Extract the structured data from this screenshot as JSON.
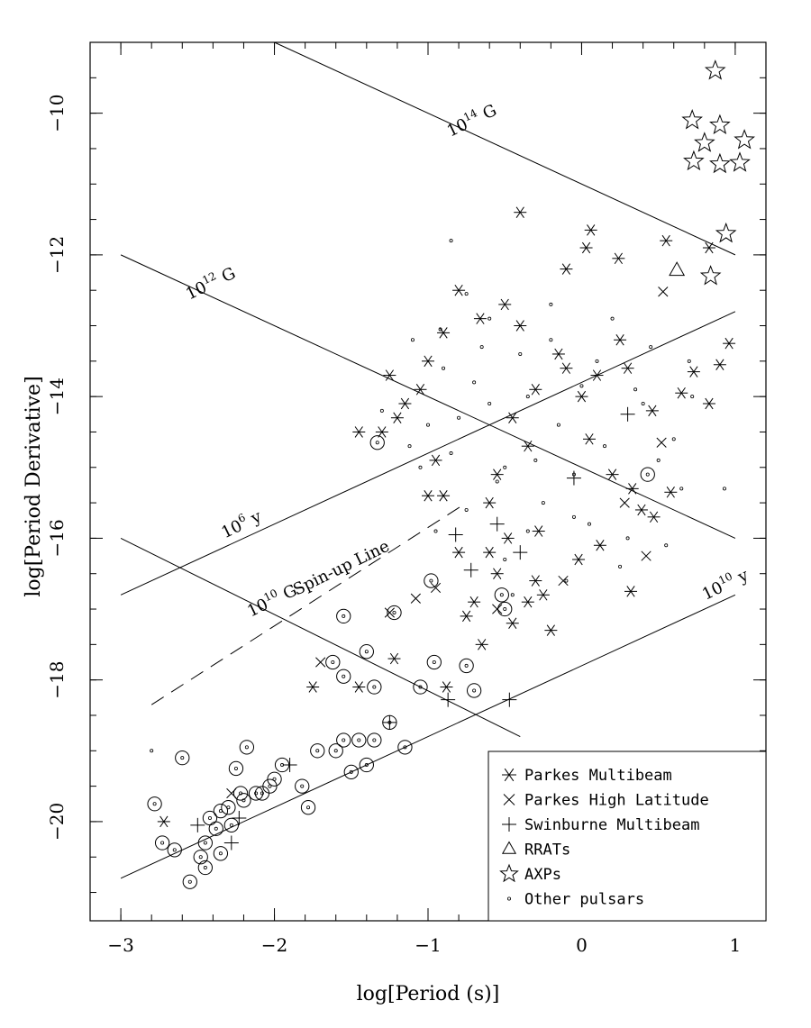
{
  "chart_data": {
    "type": "scatter",
    "xlabel": "log[Period (s)]",
    "ylabel": "log[Period Derivative]",
    "xlim": [
      -3.2,
      1.2
    ],
    "ylim": [
      -21.4,
      -9.0
    ],
    "x_ticks": [
      -3,
      -2,
      -1,
      0,
      1
    ],
    "y_ticks": [
      -20,
      -18,
      -16,
      -14,
      -12,
      -10
    ],
    "x_tick_labels": [
      "−3",
      "−2",
      "−1",
      "0",
      "1"
    ],
    "y_tick_labels": [
      "−20",
      "−18",
      "−16",
      "−14",
      "−12",
      "−10"
    ],
    "grid": false,
    "legend_position": "bottom-right",
    "legend": [
      {
        "marker": "asterisk",
        "label": "Parkes Multibeam"
      },
      {
        "marker": "cross",
        "label": "Parkes High Latitude"
      },
      {
        "marker": "plus",
        "label": "Swinburne Multibeam"
      },
      {
        "marker": "triangle",
        "label": "RRATs"
      },
      {
        "marker": "star",
        "label": "AXPs"
      },
      {
        "marker": "dot",
        "label": "Other pulsars"
      }
    ],
    "reference_lines": [
      {
        "label_base": "10",
        "label_exp": "14",
        "label_unit": "G",
        "kind": "field",
        "x": [
          -2.0,
          1.0
        ],
        "y": [
          -9.0,
          -12.0
        ],
        "label_x": -0.7,
        "label_rot": -26
      },
      {
        "label_base": "10",
        "label_exp": "12",
        "label_unit": "G",
        "kind": "field",
        "x": [
          -3.0,
          1.0
        ],
        "y": [
          -12.0,
          -16.0
        ],
        "label_x": -2.4,
        "label_rot": -26
      },
      {
        "label_base": "10",
        "label_exp": "10",
        "label_unit": "G",
        "kind": "field",
        "x": [
          -3.0,
          -0.4
        ],
        "y": [
          -16.0,
          -18.8
        ],
        "label_x": -2.0,
        "label_rot": -26
      },
      {
        "label_base": "10",
        "label_exp": "6",
        "label_unit": "y",
        "kind": "age",
        "x": [
          -3.0,
          1.0
        ],
        "y": [
          -16.8,
          -12.8
        ],
        "label_x": -2.2,
        "label_rot": -26
      },
      {
        "label_base": "10",
        "label_exp": "10",
        "label_unit": "y",
        "kind": "age",
        "x": [
          -3.0,
          1.0
        ],
        "y": [
          -20.8,
          -16.8
        ],
        "label_x": 0.95,
        "label_rot": -26
      },
      {
        "label": "Spin-up Line",
        "kind": "spinup",
        "dashed": true,
        "x": [
          -2.8,
          -0.75
        ],
        "y": [
          -18.35,
          -15.5
        ],
        "label_x": -1.55,
        "label_rot": -26
      }
    ],
    "series": [
      {
        "name": "AXPs",
        "marker": "star",
        "x": [
          0.87,
          0.72,
          0.9,
          0.8,
          1.06,
          0.73,
          0.9,
          1.03,
          0.94,
          0.84
        ],
        "y": [
          -9.4,
          -10.1,
          -10.17,
          -10.42,
          -10.38,
          -10.68,
          -10.72,
          -10.7,
          -11.7,
          -12.3
        ]
      },
      {
        "name": "RRATs",
        "marker": "triangle",
        "x": [
          0.62
        ],
        "y": [
          -12.22
        ]
      },
      {
        "name": "Parkes High Latitude",
        "marker": "cross",
        "x": [
          0.53,
          0.52,
          0.42,
          -0.12,
          0.28,
          -0.55,
          -0.95,
          -1.08,
          -1.25,
          -1.7,
          -2.28
        ],
        "y": [
          -12.52,
          -14.65,
          -16.25,
          -16.6,
          -15.5,
          -17.0,
          -16.7,
          -16.85,
          -17.05,
          -17.75,
          -19.6
        ]
      },
      {
        "name": "Swinburne Multibeam",
        "marker": "plus",
        "x": [
          -0.47,
          -0.87,
          -0.82,
          -0.72,
          -0.55,
          -0.4,
          -0.05,
          0.3,
          -1.25,
          -2.23,
          -2.28,
          -2.5,
          -1.9
        ],
        "y": [
          -18.28,
          -18.28,
          -15.95,
          -16.45,
          -15.8,
          -16.2,
          -15.15,
          -14.25,
          -18.6,
          -19.95,
          -20.3,
          -20.05,
          -19.2
        ]
      },
      {
        "name": "Parkes Multibeam",
        "marker": "asterisk",
        "x": [
          -0.4,
          0.06,
          0.03,
          0.24,
          -0.1,
          0.55,
          0.83,
          0.96,
          0.9,
          0.73,
          0.65,
          0.83,
          0.46,
          0.3,
          -0.15,
          -0.4,
          -0.66,
          -0.5,
          -0.8,
          -0.9,
          -1.0,
          -1.05,
          -1.15,
          -1.2,
          -1.25,
          -1.3,
          -1.45,
          -0.55,
          -0.6,
          -0.48,
          0.05,
          0.2,
          0.33,
          0.39,
          0.47,
          0.12,
          -0.02,
          -0.3,
          -0.35,
          -0.45,
          -0.7,
          -0.8,
          -0.9,
          -0.95,
          -1.0,
          -0.75,
          -0.65,
          -0.25,
          -0.2,
          -0.55,
          -0.6,
          -0.35,
          0.0,
          0.1,
          0.25,
          -0.1,
          -0.3,
          -0.45,
          -0.28,
          -1.75,
          -1.45,
          -2.72,
          -1.22,
          -0.88,
          0.58,
          0.32
        ],
        "y": [
          -11.4,
          -11.65,
          -11.9,
          -12.05,
          -12.2,
          -11.8,
          -11.9,
          -13.25,
          -13.55,
          -13.65,
          -13.95,
          -14.1,
          -14.2,
          -13.6,
          -13.4,
          -13.0,
          -12.9,
          -12.7,
          -12.5,
          -13.1,
          -13.5,
          -13.9,
          -14.1,
          -14.3,
          -13.7,
          -14.5,
          -14.5,
          -15.1,
          -15.5,
          -16.0,
          -14.6,
          -15.1,
          -15.3,
          -15.6,
          -15.7,
          -16.1,
          -16.3,
          -16.6,
          -16.9,
          -17.2,
          -16.9,
          -16.2,
          -15.4,
          -14.9,
          -15.4,
          -17.1,
          -17.5,
          -16.8,
          -17.3,
          -16.5,
          -16.2,
          -14.7,
          -14.0,
          -13.7,
          -13.2,
          -13.6,
          -13.9,
          -14.3,
          -15.9,
          -18.1,
          -18.1,
          -20.0,
          -17.7,
          -18.1,
          -15.35,
          -16.75
        ]
      },
      {
        "name": "Other pulsars",
        "marker": "dot",
        "x": [
          -0.85,
          -0.75,
          -1.3,
          -0.92,
          -0.6,
          -0.2,
          0.2,
          0.45,
          0.7,
          0.72,
          0.93,
          -0.05,
          -0.35,
          -0.5,
          -1.05,
          -1.12,
          -0.85,
          -0.55,
          -0.25,
          0.05,
          0.3,
          0.55,
          0.65,
          -0.15,
          -0.7,
          -0.9,
          -0.4,
          0.1,
          0.35,
          -0.6,
          -1.0,
          -0.3,
          0.15,
          0.5,
          -0.75,
          -0.45,
          -0.1,
          0.25,
          -0.2,
          -0.65,
          -1.1,
          -0.95,
          -0.5,
          -0.05,
          0.4,
          0.6,
          -0.8,
          -0.35,
          0.0,
          -2.8
        ],
        "y": [
          -11.8,
          -12.55,
          -14.2,
          -13.05,
          -12.9,
          -12.7,
          -12.9,
          -13.3,
          -13.5,
          -14.0,
          -15.3,
          -15.7,
          -15.9,
          -16.3,
          -15.0,
          -14.7,
          -14.8,
          -15.2,
          -15.5,
          -15.8,
          -16.0,
          -16.1,
          -15.3,
          -14.4,
          -13.8,
          -13.6,
          -13.4,
          -13.5,
          -13.9,
          -14.1,
          -14.4,
          -14.9,
          -14.7,
          -14.9,
          -15.6,
          -16.8,
          -16.6,
          -16.4,
          -13.2,
          -13.3,
          -13.2,
          -15.9,
          -15.0,
          -15.1,
          -14.1,
          -14.6,
          -14.3,
          -14.0,
          -13.85,
          -19.0
        ]
      },
      {
        "name": "Other pulsars (binary)",
        "marker": "dot-ring",
        "x": [
          -1.33,
          -1.55,
          -1.22,
          -0.98,
          -1.4,
          -1.62,
          -1.55,
          -1.35,
          -1.05,
          -0.96,
          -0.75,
          -0.7,
          -2.6,
          -2.78,
          -2.73,
          -2.65,
          -2.55,
          -2.48,
          -2.45,
          -2.42,
          -2.38,
          -2.35,
          -2.3,
          -2.25,
          -2.22,
          -2.2,
          -2.18,
          -2.12,
          -2.08,
          -2.03,
          -2.0,
          -1.95,
          -1.82,
          -1.78,
          -1.72,
          -1.6,
          -1.55,
          -1.5,
          -1.45,
          -1.4,
          -1.35,
          -1.25,
          -1.15,
          -2.35,
          -2.28,
          -2.45,
          -0.52,
          0.43,
          -0.5
        ],
        "y": [
          -14.65,
          -17.1,
          -17.05,
          -16.6,
          -17.6,
          -17.75,
          -17.95,
          -18.1,
          -18.1,
          -17.75,
          -17.8,
          -18.15,
          -19.1,
          -19.75,
          -20.3,
          -20.4,
          -20.85,
          -20.5,
          -20.3,
          -19.95,
          -20.1,
          -19.85,
          -19.8,
          -19.25,
          -19.6,
          -19.7,
          -18.95,
          -19.6,
          -19.6,
          -19.5,
          -19.4,
          -19.2,
          -19.5,
          -19.8,
          -19.0,
          -19.0,
          -18.85,
          -19.3,
          -18.85,
          -19.2,
          -18.85,
          -18.6,
          -18.95,
          -20.45,
          -20.05,
          -20.65,
          -16.8,
          -15.1,
          -17.0
        ]
      }
    ]
  }
}
